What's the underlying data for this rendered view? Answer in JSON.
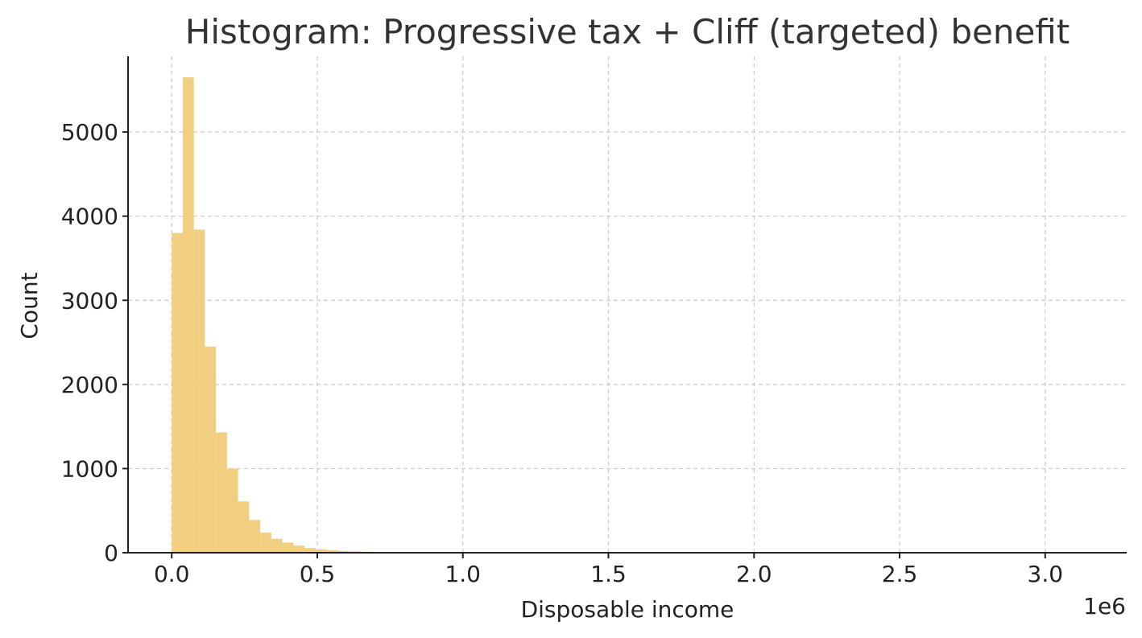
{
  "chart_data": {
    "type": "bar",
    "title": "Histogram: Progressive tax + Cliff (targeted) benefit",
    "xlabel": "Disposable income",
    "ylabel": "Count",
    "x_offset_label": "1e6",
    "x_scale_factor": 1000000,
    "xlim": [
      -150000,
      3280000
    ],
    "ylim": [
      0,
      5900
    ],
    "x_ticks": [
      0,
      500000,
      1000000,
      1500000,
      2000000,
      2500000,
      3000000
    ],
    "x_tick_labels": [
      "0.0",
      "0.5",
      "1.0",
      "1.5",
      "2.0",
      "2.5",
      "3.0"
    ],
    "y_ticks": [
      0,
      1000,
      2000,
      3000,
      4000,
      5000
    ],
    "y_tick_labels": [
      "0",
      "1000",
      "2000",
      "3000",
      "4000",
      "5000"
    ],
    "grid": true,
    "bar_color": "#f2cf80",
    "bin_width": 38000,
    "bin_start": 0,
    "values": [
      3800,
      5650,
      3840,
      2450,
      1430,
      1000,
      610,
      390,
      240,
      165,
      120,
      85,
      55,
      40,
      30,
      22,
      16,
      12,
      9,
      7,
      5,
      4,
      3,
      3,
      2,
      2,
      1,
      1,
      1,
      1,
      1,
      1,
      0,
      0,
      0,
      0,
      0,
      0,
      0,
      0,
      0,
      0,
      0,
      0,
      0,
      0,
      0,
      0,
      0,
      0,
      0,
      0,
      0,
      0,
      0,
      0,
      0,
      0,
      0,
      0,
      0,
      0,
      0,
      0,
      0,
      0,
      0,
      0,
      0,
      0,
      0,
      0,
      0,
      0,
      0,
      0,
      0,
      0,
      0,
      0,
      0,
      1
    ]
  }
}
